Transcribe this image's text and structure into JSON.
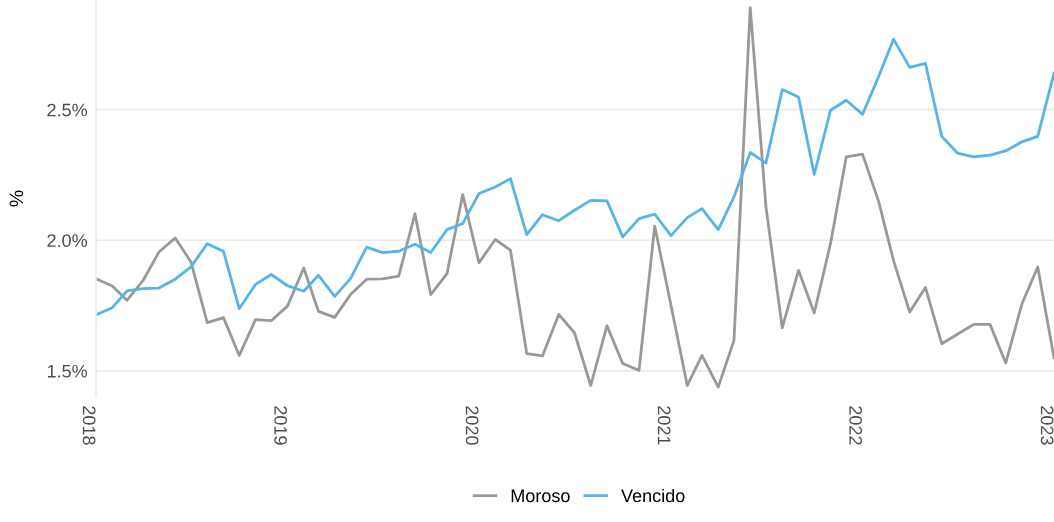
{
  "chart_data": {
    "type": "line",
    "ylabel": "%",
    "x": [
      "2018-01",
      "2018-02",
      "2018-03",
      "2018-04",
      "2018-05",
      "2018-06",
      "2018-07",
      "2018-08",
      "2018-09",
      "2018-10",
      "2018-11",
      "2018-12",
      "2019-01",
      "2019-02",
      "2019-03",
      "2019-04",
      "2019-05",
      "2019-06",
      "2019-07",
      "2019-08",
      "2019-09",
      "2019-10",
      "2019-11",
      "2019-12",
      "2020-01",
      "2020-02",
      "2020-03",
      "2020-04",
      "2020-05",
      "2020-06",
      "2020-07",
      "2020-08",
      "2020-09",
      "2020-10",
      "2020-11",
      "2020-12",
      "2021-01",
      "2021-02",
      "2021-03",
      "2021-04",
      "2021-05",
      "2021-06",
      "2021-07",
      "2021-08",
      "2021-09",
      "2021-10",
      "2021-11",
      "2021-12",
      "2022-01",
      "2022-02",
      "2022-03",
      "2022-04",
      "2022-05",
      "2022-06",
      "2022-07",
      "2022-08",
      "2022-09",
      "2022-10",
      "2022-11",
      "2022-12",
      "2023-01"
    ],
    "series": [
      {
        "name": "Moroso",
        "color": "#999999",
        "values": [
          1.853,
          1.825,
          1.77,
          1.847,
          1.955,
          2.009,
          1.917,
          1.685,
          1.704,
          1.559,
          1.696,
          1.692,
          1.748,
          1.894,
          1.728,
          1.705,
          1.792,
          1.851,
          1.852,
          1.863,
          2.102,
          1.792,
          1.872,
          2.175,
          1.914,
          2.003,
          1.962,
          1.566,
          1.557,
          1.716,
          1.646,
          1.444,
          1.673,
          1.528,
          1.502,
          2.054,
          1.75,
          1.444,
          1.559,
          1.438,
          1.617,
          2.891,
          2.128,
          1.665,
          1.885,
          1.722,
          1.987,
          2.319,
          2.33,
          2.147,
          1.923,
          1.725,
          1.819,
          1.604,
          1.64,
          1.678,
          1.678,
          1.53,
          1.757,
          1.898,
          1.55
        ]
      },
      {
        "name": "Vencido",
        "color": "#56b4e9",
        "values": [
          1.715,
          1.742,
          1.806,
          1.815,
          1.817,
          1.851,
          1.898,
          1.987,
          1.958,
          1.738,
          1.831,
          1.869,
          1.826,
          1.805,
          1.866,
          1.785,
          1.853,
          1.974,
          1.953,
          1.958,
          1.985,
          1.953,
          2.041,
          2.064,
          2.179,
          2.204,
          2.236,
          2.022,
          2.098,
          2.075,
          2.115,
          2.153,
          2.151,
          2.013,
          2.083,
          2.1,
          2.018,
          2.087,
          2.121,
          2.041,
          2.166,
          2.336,
          2.296,
          2.577,
          2.549,
          2.252,
          2.498,
          2.536,
          2.482,
          2.628,
          2.77,
          2.662,
          2.677,
          2.398,
          2.334,
          2.319,
          2.326,
          2.342,
          2.377,
          2.398,
          2.64
        ]
      }
    ],
    "xlim": [
      "2018-01",
      "2023-01"
    ],
    "xticks": [
      {
        "value": "2018-01",
        "label": "2018"
      },
      {
        "value": "2019-01",
        "label": "2019"
      },
      {
        "value": "2020-01",
        "label": "2020"
      },
      {
        "value": "2021-01",
        "label": "2021"
      },
      {
        "value": "2022-01",
        "label": "2022"
      },
      {
        "value": "2023-01",
        "label": "2023"
      }
    ],
    "yticks": [
      {
        "value": 1.5,
        "label": "1.5%"
      },
      {
        "value": 2.0,
        "label": "2.0%"
      },
      {
        "value": 2.5,
        "label": "2.5%"
      }
    ],
    "ylim": [
      1.4,
      2.92
    ],
    "grid": "y",
    "legend": "bottom",
    "marker": "none",
    "line_style": "solid"
  }
}
